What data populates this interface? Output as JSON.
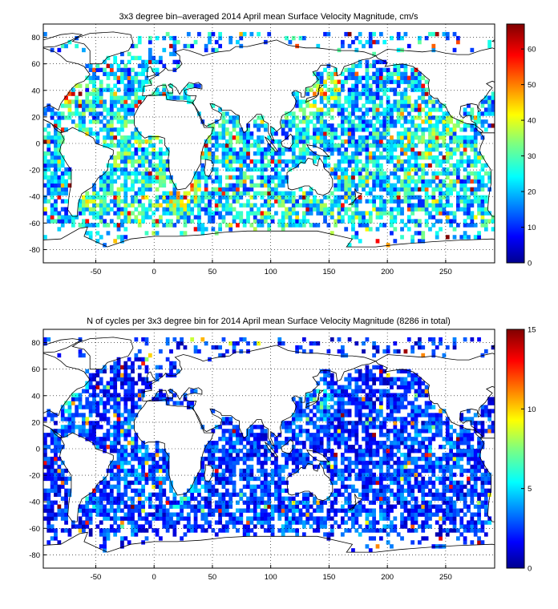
{
  "chart_data": [
    {
      "type": "heatmap",
      "title": "3x3 degree bin–averaged 2014 April mean Surface Velocity Magnitude, cm/s",
      "xlabel": "",
      "ylabel": "",
      "xlim": [
        -95,
        292
      ],
      "ylim": [
        -90,
        90
      ],
      "xticks": [
        -50,
        0,
        50,
        100,
        150,
        200,
        250
      ],
      "yticks": [
        -80,
        -60,
        -40,
        -20,
        0,
        20,
        40,
        60,
        80
      ],
      "grid": true,
      "bin_size_deg": 3,
      "colorbar": {
        "min": 0,
        "max": 67,
        "ticks": [
          0,
          10,
          20,
          30,
          40,
          50,
          60
        ],
        "colormap": "jet"
      },
      "description_of_values": "mostly 10-30 cm/s in open ocean; 40-67 cm/s in western boundary currents (Gulf Stream, Kuroshio, Agulhas) and equatorial bands",
      "seed": 11
    },
    {
      "type": "heatmap",
      "title": "N of cycles per 3x3 degree bin for 2014 April mean Surface Velocity Magnitude (8286 in total)",
      "xlabel": "",
      "ylabel": "",
      "xlim": [
        -95,
        292
      ],
      "ylim": [
        -90,
        90
      ],
      "xticks": [
        -50,
        0,
        50,
        100,
        150,
        200,
        250
      ],
      "yticks": [
        -80,
        -60,
        -40,
        -20,
        0,
        20,
        40,
        60,
        80
      ],
      "grid": true,
      "bin_size_deg": 3,
      "colorbar": {
        "min": 0,
        "max": 15,
        "ticks": [
          0,
          5,
          10,
          15
        ],
        "colormap": "jet"
      },
      "description_of_values": "mostly 1-4 cycles per bin; up to 15 in dense regions",
      "seed": 29
    }
  ]
}
